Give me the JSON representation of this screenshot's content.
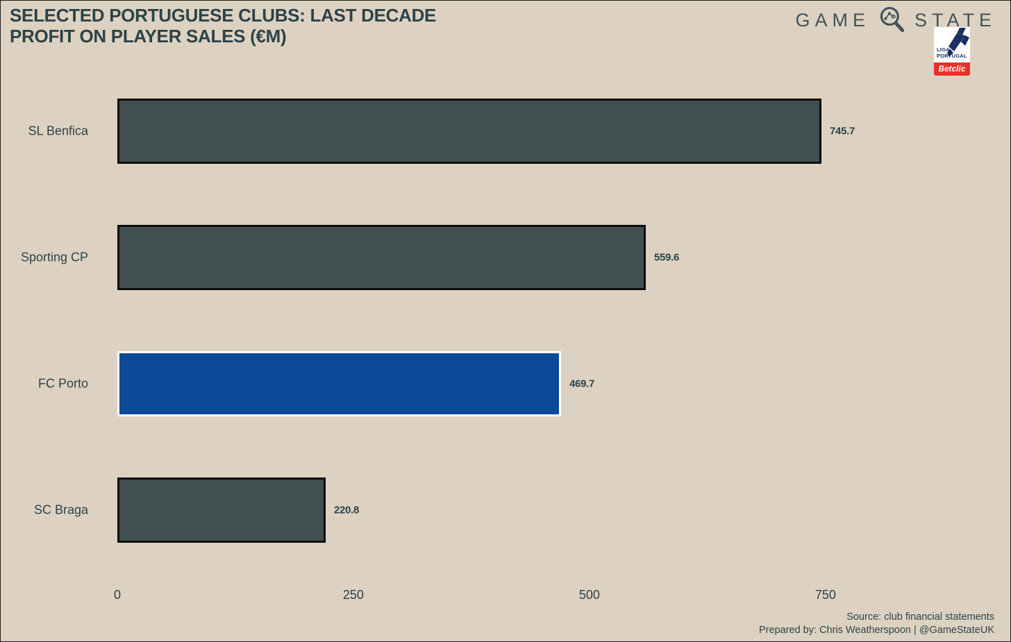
{
  "title": {
    "line1": "SELECTED PORTUGUESE CLUBS: LAST DECADE",
    "line2": "PROFIT ON PLAYER SALES (€M)"
  },
  "brand": {
    "word_left": "GAME",
    "word_right": "STATE",
    "magnifier_icon": "magnifier-with-line-chart",
    "liga_badge": {
      "line1": "LIGA",
      "line2": "PORTUGAL",
      "sponsor": "Betclic"
    }
  },
  "chart_data": {
    "type": "bar",
    "orientation": "horizontal",
    "title": "SELECTED PORTUGUESE CLUBS: LAST DECADE PROFIT ON PLAYER SALES (€M)",
    "categories": [
      "SL Benfica",
      "Sporting CP",
      "FC Porto",
      "SC Braga"
    ],
    "values": [
      745.7,
      559.6,
      469.7,
      220.8
    ],
    "value_labels": [
      "745.7",
      "559.6",
      "469.7",
      "220.8"
    ],
    "highlight_index": 2,
    "x_ticks": [
      "0",
      "250",
      "500",
      "750"
    ],
    "x_tick_values": [
      0,
      250,
      500,
      750
    ],
    "xlim": [
      0,
      750
    ],
    "grid": false,
    "legend": false,
    "colors": {
      "bar_fill": "#41504f",
      "bar_border": "#0c0c0c",
      "highlight_fill": "#0b4a99",
      "highlight_border": "#ffffff"
    }
  },
  "footer": {
    "source": "Source: club financial statements",
    "prepared": "Prepared by: Chris Weatherspoon | @GameStateUK"
  },
  "colors": {
    "background": "#ddd2c1",
    "text": "#2c4249",
    "brand_text": "#40525a",
    "liga_navy": "#1d2e63",
    "betclic_red": "#e8312a"
  }
}
